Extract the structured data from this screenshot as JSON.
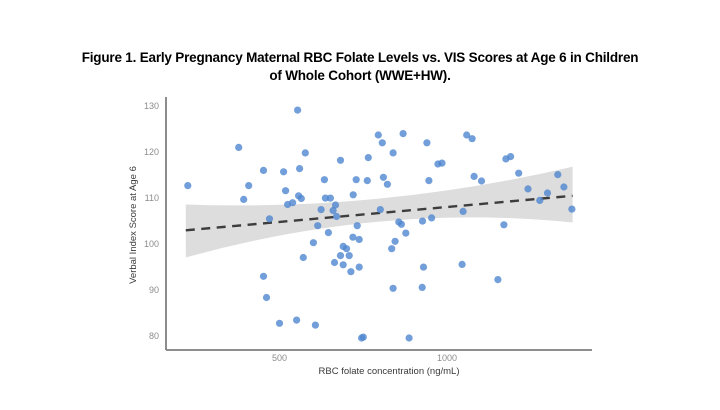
{
  "figure": {
    "title_line1": "Figure 1. Early Pregnancy Maternal RBC Folate Levels vs. VIS Scores at Age 6 in Children",
    "title_line2": "of Whole Cohort (WWE+HW)."
  },
  "chart_data": {
    "type": "scatter",
    "title": "Figure 1. Early Pregnancy Maternal RBC Folate Levels vs. VIS Scores at Age 6 in Children of Whole Cohort (WWE+HW).",
    "xlabel": "RBC folate concentration (ng/mL)",
    "ylabel": "Verbal Index Score at Age 6",
    "xlim": [
      161,
      1433
    ],
    "ylim": [
      77,
      131.3
    ],
    "x_ticks": [
      500,
      1000
    ],
    "y_ticks": [
      80,
      90,
      100,
      110,
      120,
      130
    ],
    "grid": false,
    "legend": false,
    "points": [
      [
        226,
        112.7
      ],
      [
        378,
        121
      ],
      [
        577,
        119.8
      ],
      [
        452,
        116
      ],
      [
        512,
        115.7
      ],
      [
        560,
        116.4
      ],
      [
        408,
        112.7
      ],
      [
        393,
        109.7
      ],
      [
        518,
        111.6
      ],
      [
        557,
        110.5
      ],
      [
        565,
        109.9
      ],
      [
        539,
        109
      ],
      [
        524,
        108.6
      ],
      [
        554,
        129.1
      ],
      [
        470,
        105.5
      ],
      [
        452,
        93
      ],
      [
        461,
        88.4
      ],
      [
        500,
        82.8
      ],
      [
        551,
        83.5
      ],
      [
        607,
        82.4
      ],
      [
        571,
        97.1
      ],
      [
        601,
        100.3
      ],
      [
        614,
        104
      ],
      [
        646,
        102.5
      ],
      [
        634,
        114
      ],
      [
        682,
        118.2
      ],
      [
        637,
        110
      ],
      [
        652,
        110
      ],
      [
        667,
        108.5
      ],
      [
        624,
        107.5
      ],
      [
        670,
        106
      ],
      [
        660,
        107.3
      ],
      [
        732,
        104
      ],
      [
        719,
        101.5
      ],
      [
        738,
        101
      ],
      [
        690,
        99.5
      ],
      [
        700,
        99
      ],
      [
        682,
        97.5
      ],
      [
        708,
        97.5
      ],
      [
        664,
        96
      ],
      [
        690,
        95.5
      ],
      [
        738,
        95
      ],
      [
        713,
        94
      ],
      [
        745,
        79.6
      ],
      [
        750,
        79.8
      ],
      [
        887,
        79.6
      ],
      [
        795,
        123.7
      ],
      [
        869,
        124
      ],
      [
        807,
        122
      ],
      [
        940,
        122
      ],
      [
        839,
        119.8
      ],
      [
        765,
        118.8
      ],
      [
        729,
        114
      ],
      [
        762,
        113.8
      ],
      [
        810,
        114.5
      ],
      [
        822,
        113
      ],
      [
        946,
        113.8
      ],
      [
        720,
        110.7
      ],
      [
        801,
        107.5
      ],
      [
        856,
        104.8
      ],
      [
        864,
        104.3
      ],
      [
        927,
        105
      ],
      [
        954,
        105.7
      ],
      [
        877,
        102.4
      ],
      [
        845,
        100.6
      ],
      [
        835,
        99
      ],
      [
        930,
        95
      ],
      [
        1045,
        95.6
      ],
      [
        1152,
        92.3
      ],
      [
        839,
        90.4
      ],
      [
        926,
        90.6
      ],
      [
        1170,
        104.2
      ],
      [
        1048,
        107.1
      ],
      [
        1059,
        123.7
      ],
      [
        1075,
        122.9
      ],
      [
        973,
        117.4
      ],
      [
        985,
        117.6
      ],
      [
        1176,
        118.5
      ],
      [
        1190,
        119
      ],
      [
        1081,
        114.7
      ],
      [
        1103,
        113.7
      ],
      [
        1214,
        115.4
      ],
      [
        1331,
        115.1
      ],
      [
        1242,
        112
      ],
      [
        1349,
        112.4
      ],
      [
        1300,
        111.1
      ],
      [
        1277,
        109.5
      ],
      [
        1373,
        107.6
      ]
    ],
    "trend_line": {
      "style": "dashed",
      "x": [
        220,
        1375
      ],
      "y": [
        103,
        110.5
      ]
    },
    "confidence_band": {
      "top": [
        [
          220,
          108.6
        ],
        [
          800,
          109.9
        ],
        [
          1375,
          116.8
        ]
      ],
      "bottom": [
        [
          220,
          97.1
        ],
        [
          800,
          104.9
        ],
        [
          1375,
          104.7
        ]
      ]
    },
    "colors": {
      "point": "#4f86d0",
      "band": "#d9d9d9",
      "trend": "#3d3d3d",
      "axis": "#7f7f7f",
      "tick_label": "#8c8c8c",
      "axis_title": "#3a3a3a"
    }
  }
}
